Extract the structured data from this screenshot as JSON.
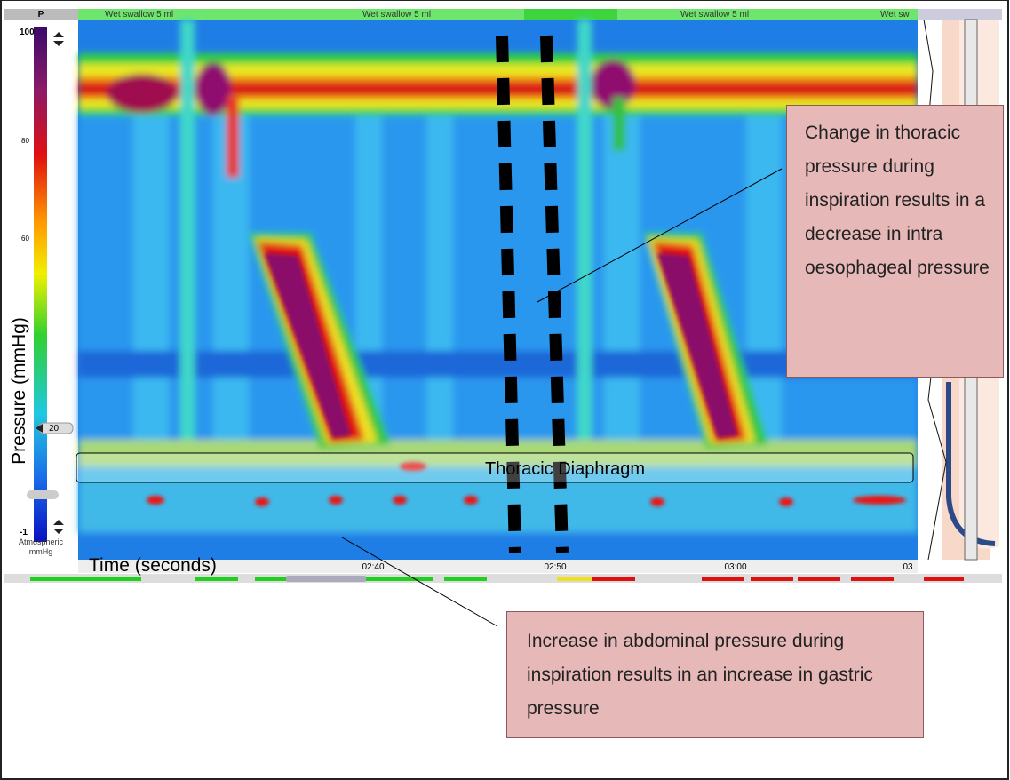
{
  "toolbar": {
    "p_label": "P",
    "events": [
      "Wet swallow 5 ml",
      "Wet swallow 5 ml",
      "Wet swallow 5 ml",
      "Wet sw"
    ]
  },
  "scale": {
    "labels": [
      "100",
      "80",
      "60",
      "20",
      "-1"
    ],
    "unit_label": [
      "Atmospheric",
      "mmHg"
    ]
  },
  "axis": {
    "y_label": "Pressure (mmHg)",
    "x_label": "Time (seconds)"
  },
  "time_labels": [
    "02:40",
    "02:50",
    "03:00",
    "03"
  ],
  "annotations": {
    "thoracic": "Change in thoracic pressure during inspiration results in a decrease in intra oesophageal pressure",
    "diaphragm": "Thoracic Diaphragm",
    "abdominal": "Increase in abdominal pressure during inspiration results in an increase in gastric pressure"
  }
}
